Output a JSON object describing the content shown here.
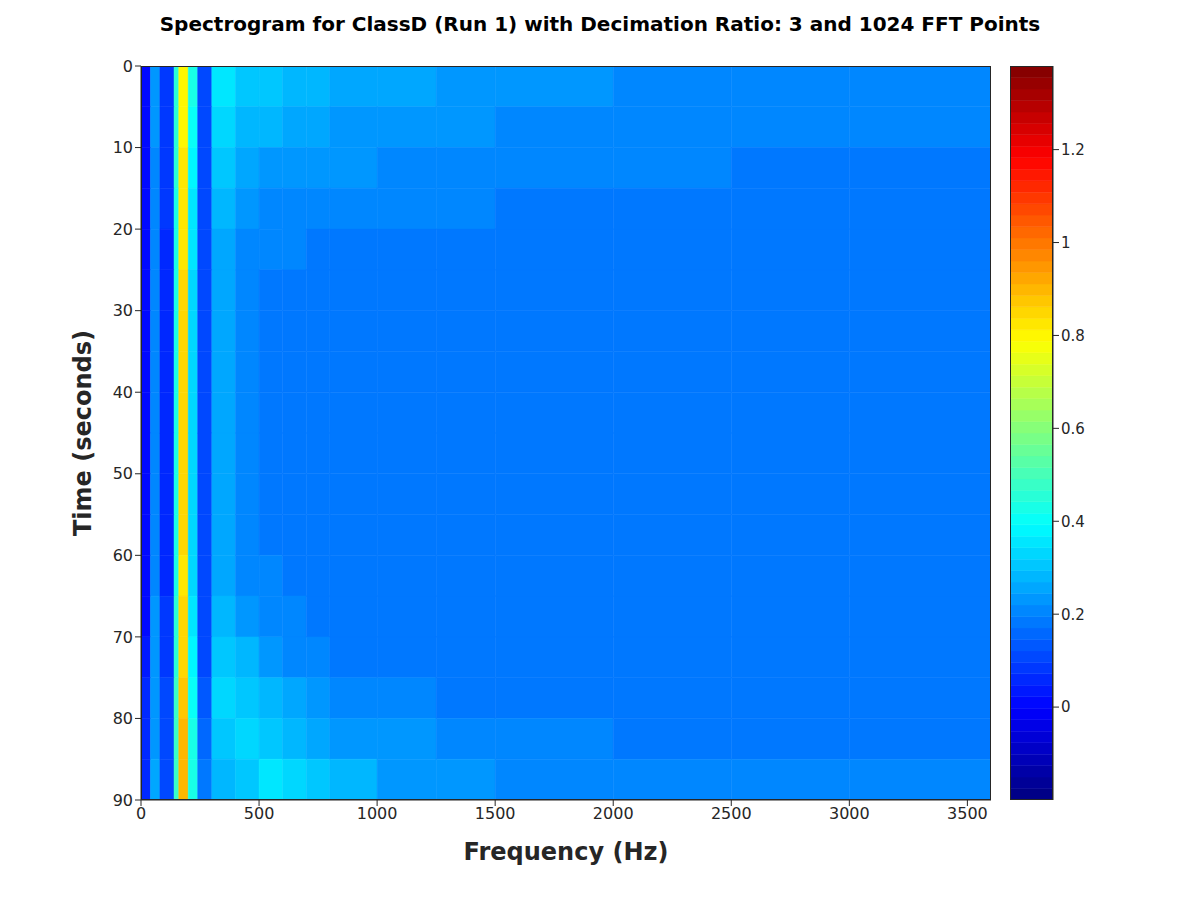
{
  "chart_data": {
    "type": "heatmap",
    "title": "Spectrogram for ClassD (Run 1) with Decimation Ratio: 3 and 1024 FFT Points",
    "x_label": "Frequency (Hz)",
    "y_label": "Time (seconds)",
    "xlim": [
      0,
      3600
    ],
    "xticks": [
      0,
      500,
      1000,
      1500,
      2000,
      2500,
      3000,
      3500
    ],
    "ylim": [
      0,
      90
    ],
    "yticks": [
      0,
      10,
      20,
      30,
      40,
      50,
      60,
      70,
      80,
      90
    ],
    "x_edges": [
      0,
      40,
      80,
      140,
      160,
      200,
      240,
      300,
      400,
      500,
      600,
      700,
      800,
      1000,
      1250,
      1500,
      2000,
      2500,
      3000,
      3600
    ],
    "y_edges": [
      0,
      5,
      10,
      15,
      20,
      25,
      30,
      35,
      40,
      45,
      50,
      55,
      60,
      65,
      70,
      75,
      80,
      85,
      90
    ],
    "cells": [
      [
        0.0,
        0.22,
        0.08,
        0.45,
        0.8,
        0.42,
        0.1,
        0.35,
        0.3,
        0.3,
        0.28,
        0.28,
        0.26,
        0.25,
        0.24,
        0.22,
        0.2,
        0.2,
        0.2
      ],
      [
        0.0,
        0.22,
        0.08,
        0.45,
        0.8,
        0.4,
        0.1,
        0.32,
        0.28,
        0.27,
        0.26,
        0.25,
        0.24,
        0.23,
        0.22,
        0.21,
        0.2,
        0.2,
        0.2
      ],
      [
        0.0,
        0.2,
        0.08,
        0.45,
        0.82,
        0.38,
        0.1,
        0.3,
        0.25,
        0.24,
        0.23,
        0.22,
        0.22,
        0.21,
        0.2,
        0.2,
        0.2,
        0.19,
        0.19
      ],
      [
        0.0,
        0.2,
        0.08,
        0.44,
        0.82,
        0.36,
        0.1,
        0.28,
        0.22,
        0.21,
        0.21,
        0.2,
        0.2,
        0.2,
        0.2,
        0.19,
        0.19,
        0.19,
        0.19
      ],
      [
        0.0,
        0.2,
        0.07,
        0.44,
        0.83,
        0.35,
        0.11,
        0.26,
        0.21,
        0.2,
        0.2,
        0.19,
        0.19,
        0.19,
        0.19,
        0.19,
        0.19,
        0.19,
        0.19
      ],
      [
        0.0,
        0.2,
        0.07,
        0.44,
        0.84,
        0.34,
        0.12,
        0.25,
        0.2,
        0.19,
        0.19,
        0.19,
        0.19,
        0.19,
        0.19,
        0.19,
        0.19,
        0.19,
        0.19
      ],
      [
        0.0,
        0.2,
        0.07,
        0.44,
        0.84,
        0.34,
        0.12,
        0.25,
        0.2,
        0.19,
        0.19,
        0.19,
        0.19,
        0.19,
        0.19,
        0.19,
        0.19,
        0.19,
        0.19
      ],
      [
        0.0,
        0.2,
        0.07,
        0.44,
        0.85,
        0.34,
        0.12,
        0.25,
        0.2,
        0.19,
        0.19,
        0.19,
        0.19,
        0.19,
        0.19,
        0.19,
        0.19,
        0.19,
        0.19
      ],
      [
        0.0,
        0.2,
        0.07,
        0.44,
        0.85,
        0.34,
        0.12,
        0.25,
        0.2,
        0.19,
        0.19,
        0.19,
        0.19,
        0.19,
        0.19,
        0.19,
        0.19,
        0.19,
        0.19
      ],
      [
        0.0,
        0.2,
        0.07,
        0.44,
        0.86,
        0.34,
        0.12,
        0.25,
        0.2,
        0.19,
        0.19,
        0.19,
        0.19,
        0.19,
        0.19,
        0.19,
        0.19,
        0.19,
        0.19
      ],
      [
        0.0,
        0.2,
        0.07,
        0.44,
        0.86,
        0.34,
        0.12,
        0.25,
        0.2,
        0.19,
        0.19,
        0.19,
        0.19,
        0.19,
        0.19,
        0.19,
        0.19,
        0.19,
        0.19
      ],
      [
        0.0,
        0.2,
        0.07,
        0.44,
        0.84,
        0.34,
        0.12,
        0.25,
        0.2,
        0.19,
        0.19,
        0.19,
        0.19,
        0.19,
        0.19,
        0.19,
        0.19,
        0.19,
        0.19
      ],
      [
        0.0,
        0.2,
        0.07,
        0.44,
        0.83,
        0.34,
        0.12,
        0.26,
        0.2,
        0.2,
        0.19,
        0.19,
        0.19,
        0.19,
        0.19,
        0.19,
        0.19,
        0.19,
        0.19
      ],
      [
        0.02,
        0.22,
        0.08,
        0.45,
        0.84,
        0.36,
        0.12,
        0.28,
        0.22,
        0.2,
        0.2,
        0.19,
        0.19,
        0.19,
        0.19,
        0.19,
        0.19,
        0.19,
        0.19
      ],
      [
        0.03,
        0.22,
        0.08,
        0.46,
        0.86,
        0.38,
        0.12,
        0.3,
        0.28,
        0.22,
        0.2,
        0.2,
        0.19,
        0.19,
        0.19,
        0.19,
        0.19,
        0.19,
        0.19
      ],
      [
        0.05,
        0.24,
        0.1,
        0.47,
        0.88,
        0.4,
        0.14,
        0.32,
        0.3,
        0.28,
        0.25,
        0.22,
        0.2,
        0.2,
        0.19,
        0.19,
        0.19,
        0.19,
        0.19
      ],
      [
        0.06,
        0.24,
        0.1,
        0.48,
        0.9,
        0.42,
        0.16,
        0.3,
        0.32,
        0.3,
        0.28,
        0.26,
        0.24,
        0.22,
        0.2,
        0.2,
        0.19,
        0.19,
        0.19
      ],
      [
        0.06,
        0.25,
        0.1,
        0.48,
        0.9,
        0.44,
        0.18,
        0.28,
        0.3,
        0.35,
        0.32,
        0.3,
        0.27,
        0.24,
        0.22,
        0.2,
        0.2,
        0.2,
        0.2
      ]
    ],
    "colorbar": {
      "range": [
        -0.2,
        1.38
      ],
      "ticks": [
        0,
        0.2,
        0.4,
        0.6,
        0.8,
        1,
        1.2
      ]
    }
  }
}
